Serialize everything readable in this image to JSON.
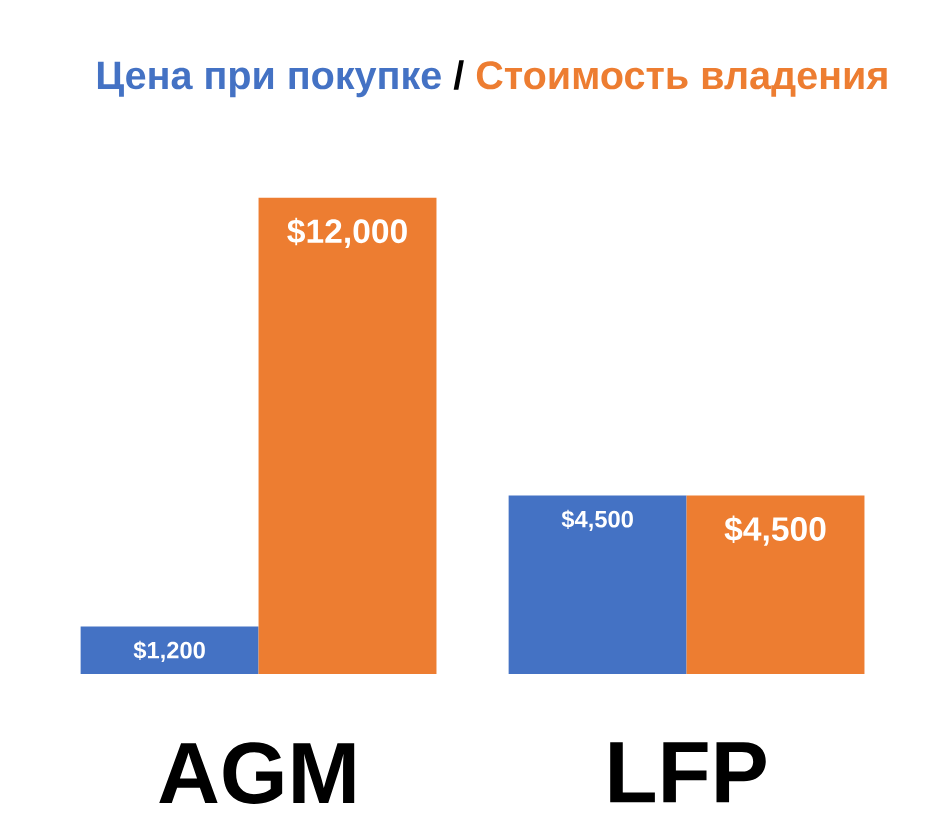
{
  "chart_data": {
    "type": "bar",
    "legend": "top",
    "tick_labels": "x",
    "categories": [
      "AGM",
      "LFP"
    ],
    "ylim": [
      0,
      12000
    ],
    "series": [
      {
        "name": "Цена при покупке",
        "color": "#4472c4",
        "values": [
          1200,
          4500
        ],
        "value_labels": [
          "$1,200",
          "$4,500"
        ]
      },
      {
        "name": "Стоимость владения",
        "color": "#ed7d31",
        "values": [
          12000,
          4500
        ],
        "value_labels": [
          "$12,000",
          "$4,500"
        ]
      }
    ],
    "annotations": [
      "/"
    ]
  }
}
